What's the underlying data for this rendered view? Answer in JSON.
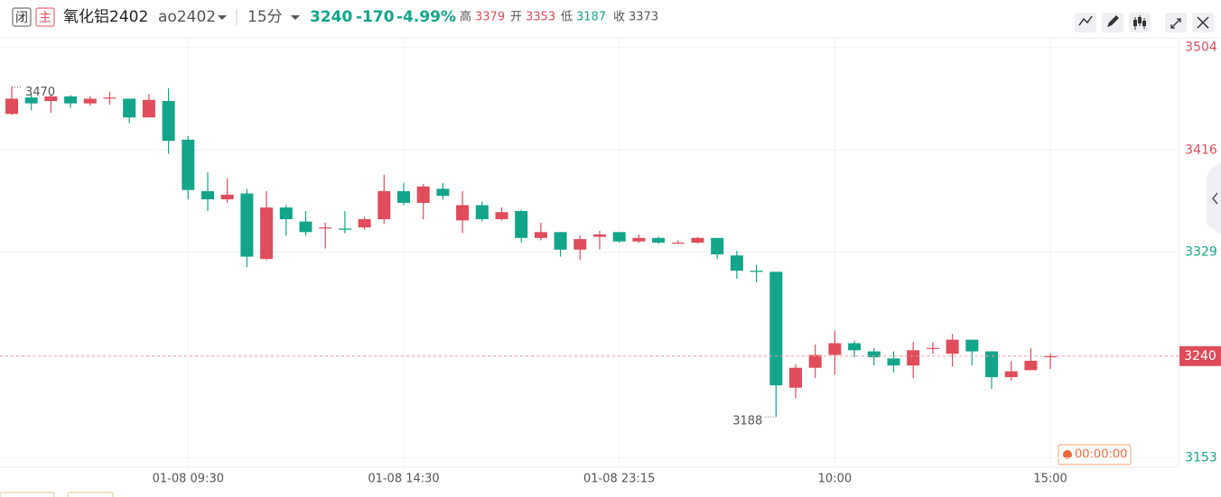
{
  "quote": {
    "status": "闭",
    "badge": "主",
    "name": "氧化铝2402",
    "code": "ao2402",
    "period": "15分",
    "last": 3240,
    "change": -170,
    "change_pct": "-4.99%",
    "high_label": "高",
    "high": 3379,
    "open_label": "开",
    "open": 3353,
    "low_label": "低",
    "low": 3187,
    "close_label": "收",
    "prev_close": 3373,
    "timer": "00:00:00"
  },
  "chart_data": {
    "type": "candlestick",
    "up_color": "#e04c5b",
    "down_color": "#12a58a",
    "categories": [
      null,
      null,
      null,
      null,
      null,
      null,
      null,
      null,
      null,
      "01-08 09:30",
      null,
      null,
      null,
      null,
      null,
      null,
      null,
      null,
      null,
      null,
      "01-08 14:30",
      null,
      null,
      null,
      null,
      null,
      null,
      null,
      null,
      null,
      null,
      "01-08 23:15",
      null,
      null,
      null,
      null,
      null,
      null,
      null,
      null,
      null,
      null,
      "10:00",
      null,
      null,
      null,
      null,
      null,
      null,
      null,
      null,
      null,
      null,
      "15:00"
    ],
    "open": [
      3447,
      3461,
      3458,
      3462,
      3456,
      3461,
      3460,
      3444,
      3458,
      3425,
      3381,
      3374,
      3379,
      3323,
      3367,
      3355,
      3350,
      3349,
      3350,
      3357,
      3381,
      3371,
      3383,
      3356,
      3369,
      3357,
      3364,
      3341,
      3346,
      3331,
      3342,
      3346,
      3338,
      3341,
      3337,
      3337,
      3341,
      3326,
      3313,
      3312,
      3213,
      3230,
      3241,
      3251,
      3244,
      3238,
      3232,
      3247,
      3242,
      3254,
      3244,
      3222,
      3228,
      3239
    ],
    "high": [
      3470,
      3465,
      3463,
      3463,
      3462,
      3466,
      3460,
      3464,
      3469,
      3428,
      3397,
      3392,
      3383,
      3381,
      3369,
      3364,
      3354,
      3364,
      3359,
      3395,
      3388,
      3387,
      3388,
      3381,
      3372,
      3367,
      3365,
      3354,
      3346,
      3343,
      3347,
      3346,
      3344,
      3342,
      3339,
      3342,
      3341,
      3330,
      3318,
      3312,
      3233,
      3250,
      3262,
      3253,
      3247,
      3244,
      3252,
      3252,
      3259,
      3254,
      3244,
      3236,
      3247,
      3242
    ],
    "low": [
      3446,
      3450,
      3448,
      3452,
      3454,
      3455,
      3439,
      3444,
      3413,
      3374,
      3364,
      3371,
      3316,
      3322,
      3343,
      3343,
      3332,
      3345,
      3348,
      3353,
      3369,
      3357,
      3374,
      3345,
      3355,
      3356,
      3337,
      3339,
      3325,
      3322,
      3331,
      3337,
      3337,
      3336,
      3336,
      3336,
      3323,
      3306,
      3303,
      3188,
      3204,
      3221,
      3224,
      3239,
      3232,
      3226,
      3221,
      3242,
      3231,
      3232,
      3212,
      3219,
      3228,
      3229
    ],
    "close": [
      3460,
      3456,
      3462,
      3456,
      3460,
      3461,
      3444,
      3459,
      3424,
      3382,
      3374,
      3378,
      3325,
      3367,
      3357,
      3346,
      3350,
      3348,
      3357,
      3381,
      3371,
      3385,
      3377,
      3369,
      3357,
      3363,
      3341,
      3346,
      3331,
      3340,
      3344,
      3338,
      3341,
      3337,
      3337,
      3341,
      3327,
      3313,
      3312,
      3215,
      3230,
      3241,
      3251,
      3245,
      3239,
      3232,
      3245,
      3247,
      3254,
      3244,
      3222,
      3227,
      3236,
      3240
    ],
    "ylim": [
      3145,
      3512
    ],
    "yticks": [
      3153,
      3240,
      3329,
      3416,
      3504
    ],
    "grid": true
  }
}
